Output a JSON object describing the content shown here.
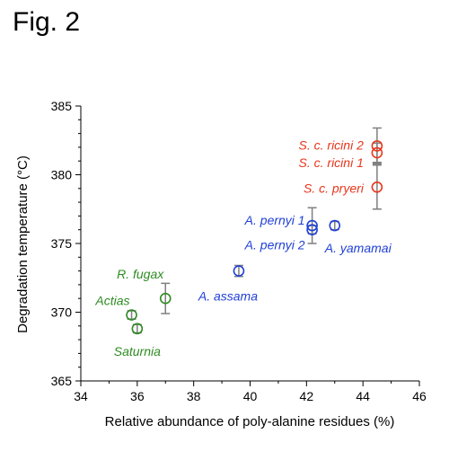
{
  "figure_label": "Fig. 2",
  "chart_data": {
    "type": "scatter",
    "xlabel": "Relative abundance of poly-alanine residues (%)",
    "ylabel": "Degradation temperature (°C)",
    "xlim": [
      34,
      46
    ],
    "ylim": [
      365,
      385
    ],
    "x_ticks": [
      34,
      36,
      38,
      40,
      42,
      44,
      46
    ],
    "y_ticks": [
      365,
      370,
      375,
      380,
      385
    ],
    "grid": false,
    "colors": {
      "green": "#2e8b22",
      "blue": "#1f3fd6",
      "red": "#e8361c",
      "error_bar": "#7f7f7f"
    },
    "series": [
      {
        "color": "green",
        "points": [
          {
            "label": "R. fugax",
            "x": 37.0,
            "y": 371.0,
            "yerr": 1.1
          },
          {
            "label": "Actias",
            "x": 35.8,
            "y": 369.8,
            "yerr": 0.3
          },
          {
            "label": "Saturnia",
            "x": 36.0,
            "y": 368.8,
            "yerr": 0.3
          }
        ]
      },
      {
        "color": "blue",
        "points": [
          {
            "label": "A. assama",
            "x": 39.6,
            "y": 373.0,
            "yerr": 0.4
          },
          {
            "label": "A. pernyi 1",
            "x": 42.2,
            "y": 376.3,
            "yerr": 1.3
          },
          {
            "label": "A. pernyi 2",
            "x": 42.2,
            "y": 376.0,
            "yerr": 0.3
          },
          {
            "label": "A. yamamai",
            "x": 43.0,
            "y": 376.3,
            "yerr": 0.3
          }
        ]
      },
      {
        "color": "red",
        "points": [
          {
            "label": "S. c. ricini 2",
            "x": 44.5,
            "y": 382.1,
            "yerr": 1.3
          },
          {
            "label": "S. c. ricini 1",
            "x": 44.5,
            "y": 381.6,
            "yerr": 0.7
          },
          {
            "label": "S. c. pryeri",
            "x": 44.5,
            "y": 379.1,
            "yerr": 1.6
          }
        ]
      }
    ]
  }
}
